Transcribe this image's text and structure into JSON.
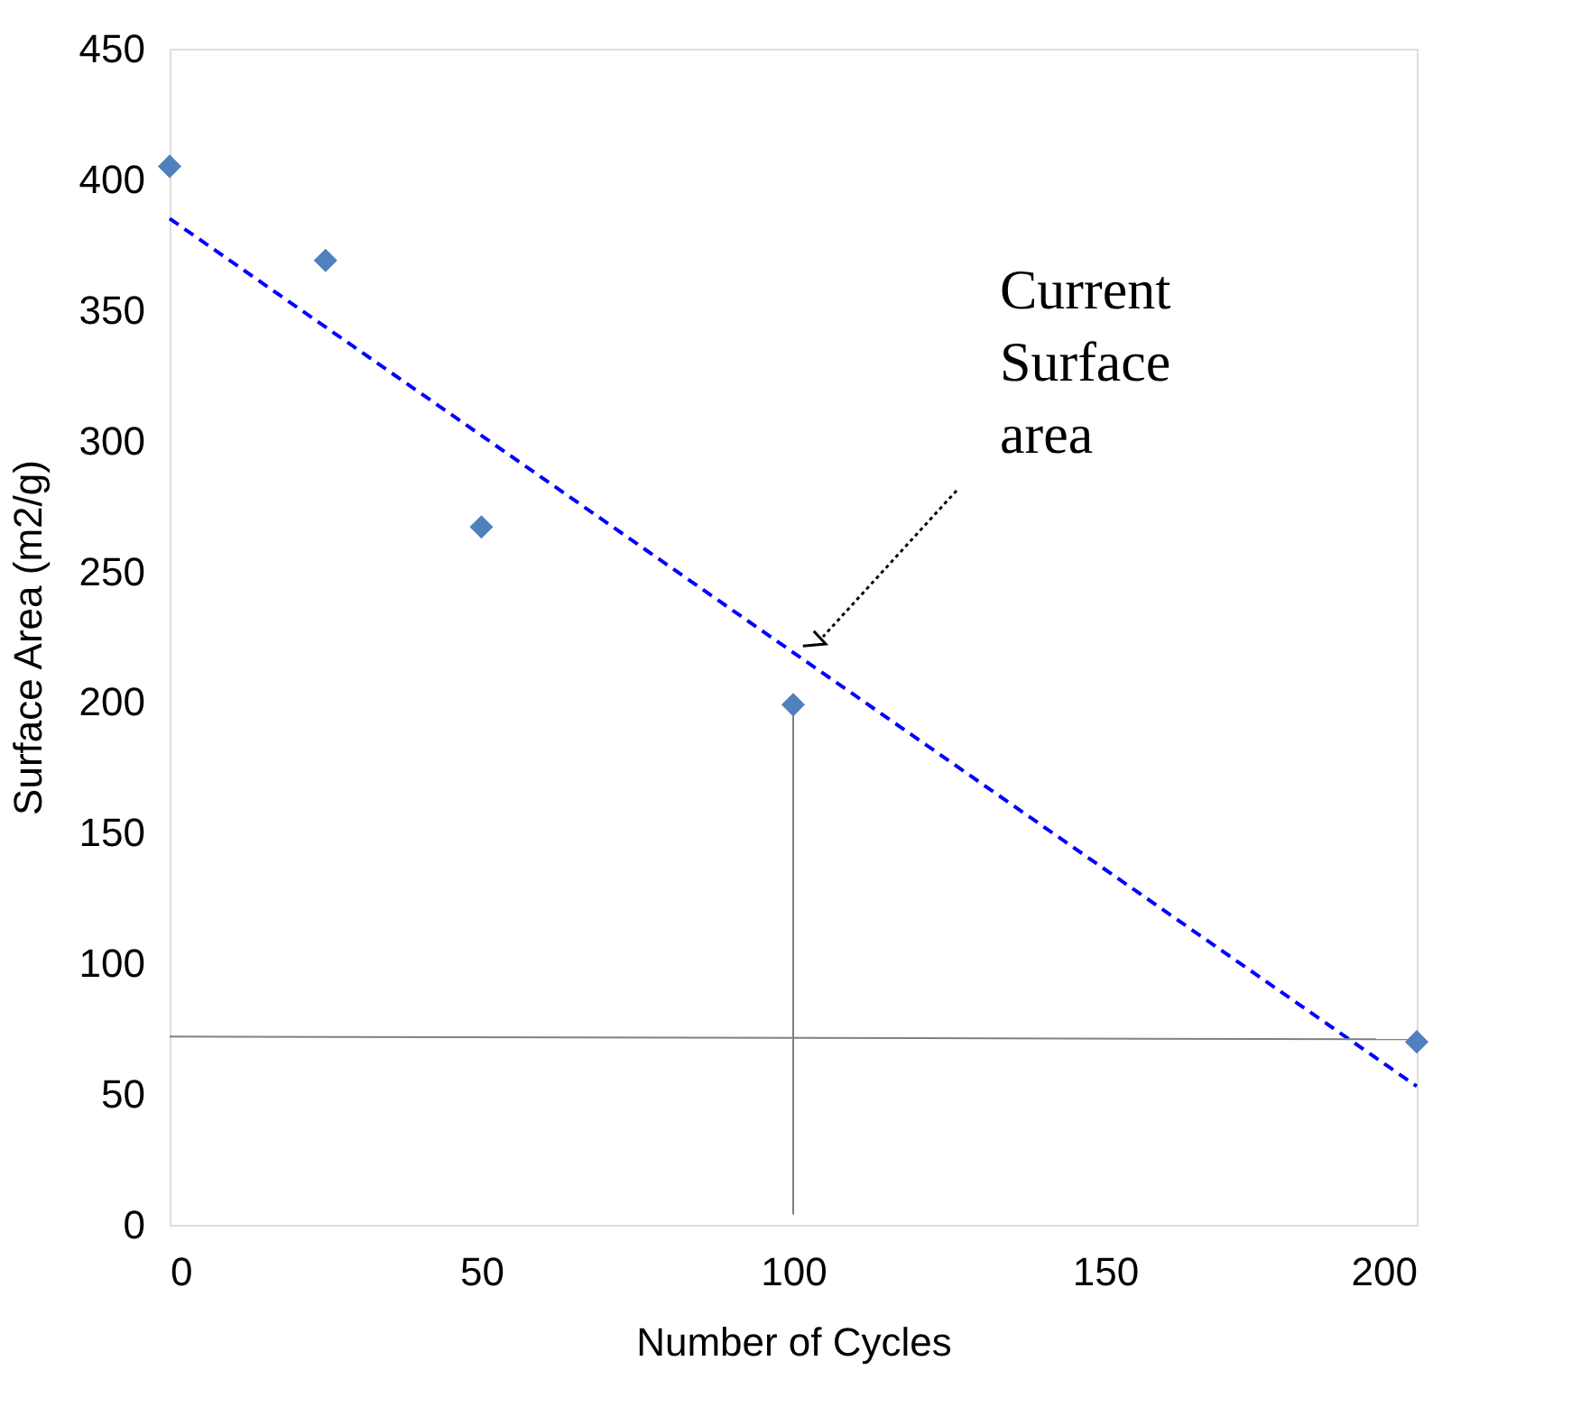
{
  "chart_data": {
    "type": "scatter",
    "xlabel": "Number of Cycles",
    "ylabel": "Surface Area (m2/g)",
    "xlim": [
      0,
      200
    ],
    "xticks": [
      0,
      50,
      100,
      150,
      200
    ],
    "ylim": [
      0,
      450
    ],
    "yticks": [
      0,
      50,
      100,
      150,
      200,
      250,
      300,
      350,
      400,
      450
    ],
    "grid": false,
    "series": [
      {
        "color": "#4f81bd",
        "marker": "diamond",
        "x": [
          0,
          25,
          50,
          100,
          200
        ],
        "values": [
          405,
          369,
          267,
          199,
          70
        ]
      },
      {
        "type": "line",
        "color": "#0000ff",
        "line_style": "dashed",
        "x": [
          0,
          200
        ],
        "values": [
          385,
          53
        ]
      },
      {
        "type": "line",
        "color": "#808080",
        "line_style": "solid",
        "x": [
          100,
          100
        ],
        "values": [
          4,
          199
        ]
      },
      {
        "type": "line",
        "color": "#808080",
        "line_style": "solid",
        "x": [
          0,
          200
        ],
        "values": [
          72,
          71
        ]
      }
    ],
    "annotations": [
      "Current Surface area"
    ]
  }
}
